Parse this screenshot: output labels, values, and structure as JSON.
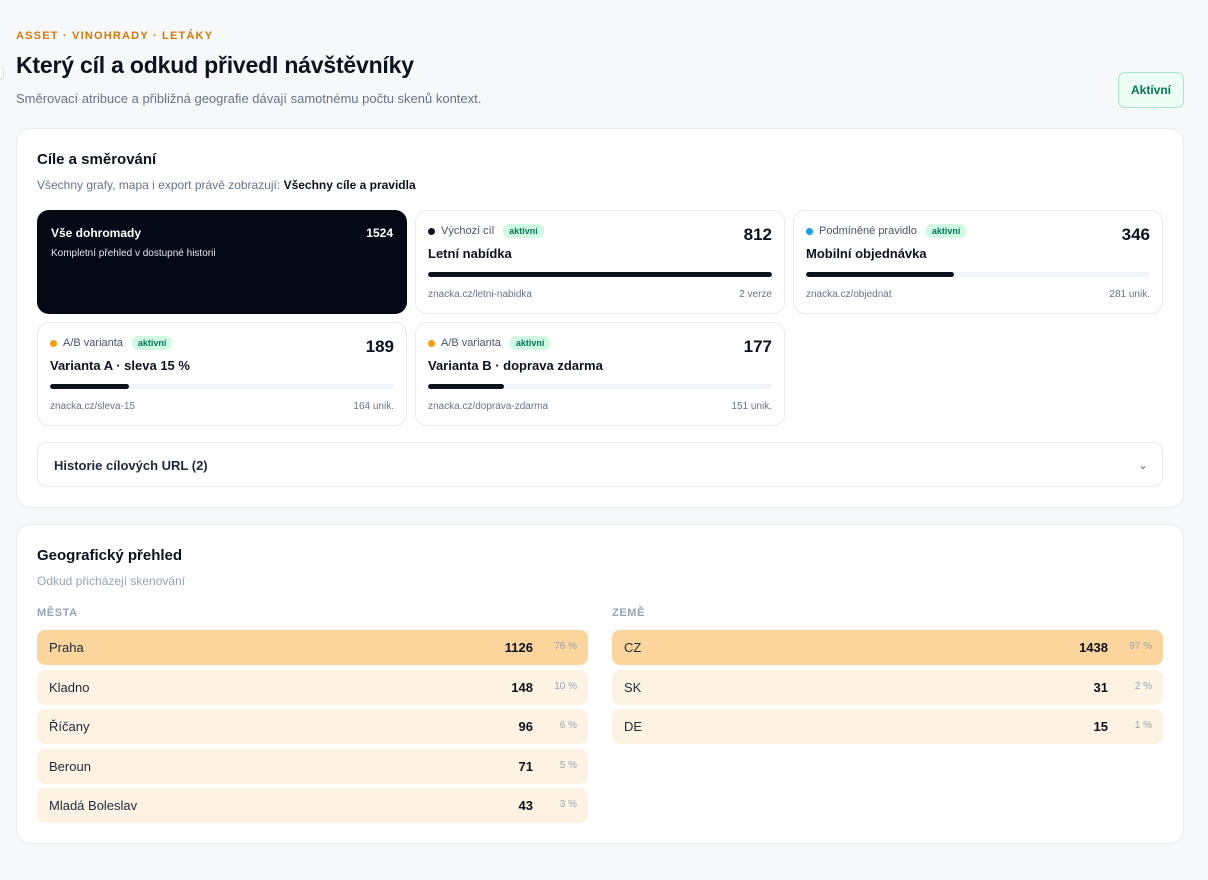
{
  "header": {
    "breadcrumb": "ASSET · VINOHRADY · LETÁKY",
    "title": "Který cíl a odkud přivedl návštěvníky",
    "subtitle": "Směrovací atribuce a přibližná geografie dávají samotnému počtu skenů kontext.",
    "status": "Aktivní"
  },
  "targets": {
    "title": "Cíle a směrování",
    "note_prefix": "Všechny grafy, mapa i export právě zobrazují:",
    "note_value": "Všechny cíle a pravidla",
    "total": {
      "name": "Vše dohromady",
      "description": "Kompletní přehled v dostupné historii",
      "count": "1524"
    },
    "cards": [
      {
        "type": "Výchozí cíl",
        "badge": "aktivní",
        "count": "812",
        "name": "Letní nabídka",
        "url": "znacka.cz/letni-nabidka",
        "meta": "2 verze",
        "share": 1.0,
        "dot_color": "#0b1220"
      },
      {
        "type": "Podmíněné pravidlo",
        "badge": "aktivní",
        "count": "346",
        "name": "Mobilní objednávka",
        "url": "znacka.cz/objednat",
        "meta": "281 unik.",
        "share": 0.43,
        "dot_color": "#0ea5e9"
      },
      {
        "type": "A/B varianta",
        "badge": "aktivní",
        "count": "189",
        "name": "Varianta A · sleva 15 %",
        "url": "znacka.cz/sleva-15",
        "meta": "164 unik.",
        "share": 0.23,
        "dot_color": "#f59e0b"
      },
      {
        "type": "A/B varianta",
        "badge": "aktivní",
        "count": "177",
        "name": "Varianta B · doprava zdarma",
        "url": "znacka.cz/doprava-zdarma",
        "meta": "151 unik.",
        "share": 0.22,
        "dot_color": "#f59e0b"
      }
    ],
    "history_label": "Historie cílových URL (2)",
    "history_icon": "chevron-down-icon"
  },
  "geo": {
    "title": "Geografický přehled",
    "subtitle": "Odkud přicházejí skenování",
    "cities_heading": "MĚSTA",
    "countries_heading": "ZEMĚ",
    "cities": [
      {
        "name": "Praha",
        "count": "1126",
        "pct": "76 %"
      },
      {
        "name": "Kladno",
        "count": "148",
        "pct": "10 %"
      },
      {
        "name": "Říčany",
        "count": "96",
        "pct": "6 %"
      },
      {
        "name": "Beroun",
        "count": "71",
        "pct": "5 %"
      },
      {
        "name": "Mladá Boleslav",
        "count": "43",
        "pct": "3 %"
      }
    ],
    "countries": [
      {
        "name": "CZ",
        "count": "1438",
        "pct": "97 %"
      },
      {
        "name": "SK",
        "count": "31",
        "pct": "2 %"
      },
      {
        "name": "DE",
        "count": "15",
        "pct": "1 %"
      }
    ]
  },
  "colors": {
    "accent_orange": "#d97706",
    "dark": "#050816",
    "active_green": "#047857",
    "geo_top": "#fbd59b",
    "geo_row": "#fef3e2"
  }
}
